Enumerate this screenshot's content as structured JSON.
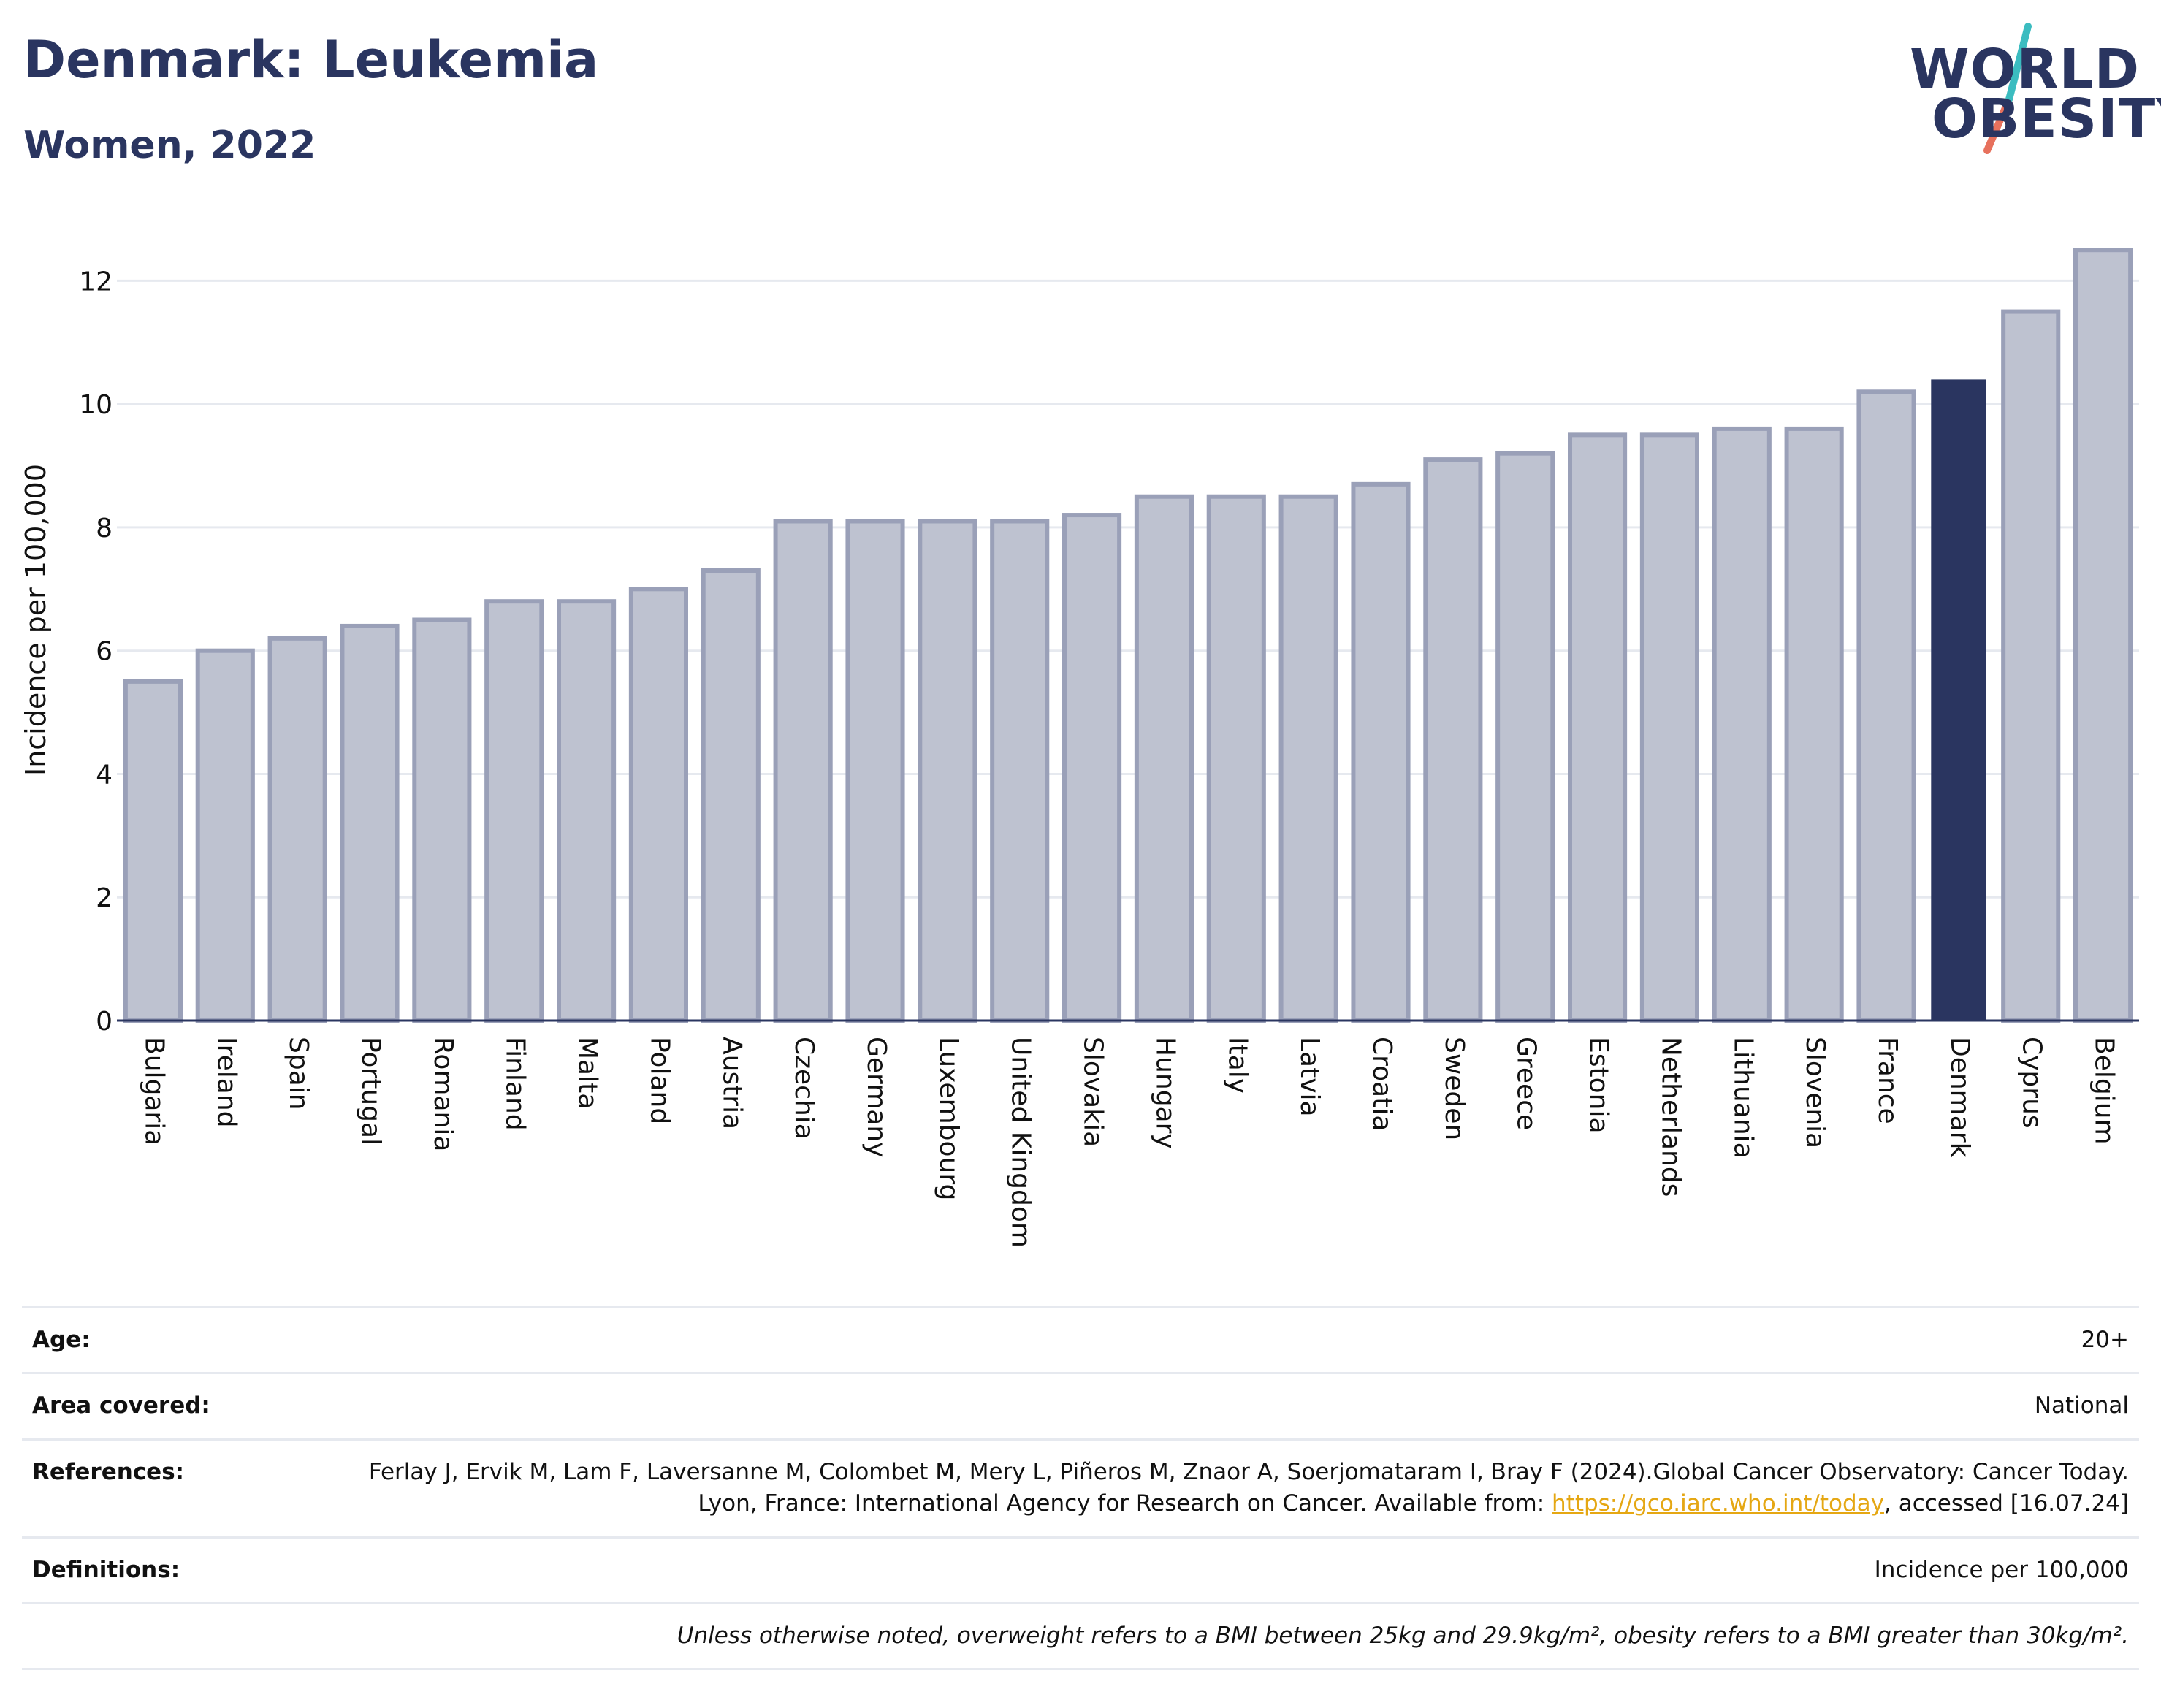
{
  "header": {
    "title": "Denmark: Leukemia",
    "subtitle": "Women, 2022"
  },
  "logo": {
    "line1": "WORLD",
    "line2": "OBESITY",
    "colors": {
      "navy": "#2a3560",
      "teal": "#3bbcc0",
      "coral": "#e7715d"
    }
  },
  "chart_data": {
    "type": "bar",
    "title": "",
    "xlabel": "",
    "ylabel": "Incidence per 100,000",
    "ylim": [
      0,
      13
    ],
    "yticks": [
      0,
      2,
      4,
      6,
      8,
      10,
      12
    ],
    "grid": true,
    "highlight": "Denmark",
    "colors": {
      "default_fill": "#bec2d0",
      "default_stroke": "#9aa0b8",
      "highlight": "#2a3560"
    },
    "categories": [
      "Bulgaria",
      "Ireland",
      "Spain",
      "Portugal",
      "Romania",
      "Finland",
      "Malta",
      "Poland",
      "Austria",
      "Czechia",
      "Germany",
      "Luxembourg",
      "United Kingdom",
      "Slovakia",
      "Hungary",
      "Italy",
      "Latvia",
      "Croatia",
      "Sweden",
      "Greece",
      "Estonia",
      "Netherlands",
      "Lithuania",
      "Slovenia",
      "France",
      "Denmark",
      "Cyprus",
      "Belgium"
    ],
    "values": [
      5.5,
      6.0,
      6.2,
      6.4,
      6.5,
      6.8,
      6.8,
      7.0,
      7.3,
      8.1,
      8.1,
      8.1,
      8.1,
      8.2,
      8.5,
      8.5,
      8.5,
      8.7,
      9.1,
      9.2,
      9.5,
      9.5,
      9.6,
      9.6,
      10.2,
      10.4,
      11.5,
      12.5
    ]
  },
  "info": {
    "age_label": "Age:",
    "age_value": "20+",
    "area_label": "Area covered:",
    "area_value": "National",
    "references_label": "References:",
    "references_text1": "Ferlay J, Ervik M, Lam F, Laversanne M, Colombet M, Mery L, Piñeros M, Znaor A, Soerjomataram I, Bray F (2024).Global Cancer Observatory: Cancer Today. Lyon, France: International Agency for Research on Cancer. Available from: ",
    "references_link": "https://gco.iarc.who.int/today",
    "references_text2": ", accessed [16.07.24]",
    "definitions_label": "Definitions:",
    "definitions_value": "Incidence per 100,000",
    "note": "Unless otherwise noted, overweight refers to a BMI between 25kg and 29.9kg/m², obesity refers to a BMI greater than 30kg/m²."
  }
}
